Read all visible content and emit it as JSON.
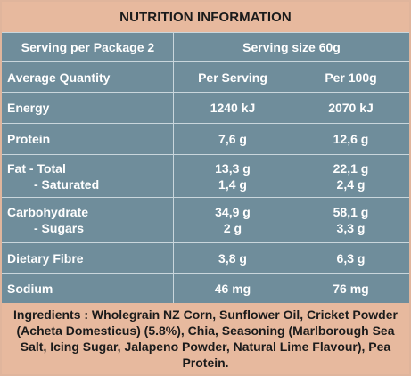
{
  "title": "NUTRITION INFORMATION",
  "serving": {
    "per_package": "Serving per Package 2",
    "size": "Serving size 60g"
  },
  "headers": {
    "quantity": "Average Quantity",
    "per_serving": "Per Serving",
    "per_100g": "Per 100g"
  },
  "rows": {
    "energy": {
      "label": "Energy",
      "per_serving": "1240 kJ",
      "per_100g": "2070 kJ"
    },
    "protein": {
      "label": "Protein",
      "per_serving": "7,6 g",
      "per_100g": "12,6 g"
    },
    "fat": {
      "label": "Fat - Total",
      "per_serving": "13,3 g",
      "per_100g": "22,1 g"
    },
    "saturated": {
      "label": "- Saturated",
      "per_serving": "1,4 g",
      "per_100g": "2,4 g"
    },
    "carbohydrate": {
      "label": "Carbohydrate",
      "per_serving": "34,9 g",
      "per_100g": "58,1 g"
    },
    "sugars": {
      "label": "- Sugars",
      "per_serving": "2 g",
      "per_100g": "3,3 g"
    },
    "fibre": {
      "label": "Dietary Fibre",
      "per_serving": "3,8 g",
      "per_100g": "6,3 g"
    },
    "sodium": {
      "label": "Sodium",
      "per_serving": "46 mg",
      "per_100g": "76 mg"
    }
  },
  "ingredients": "Ingredients : Wholegrain NZ Corn, Sunflower Oil, Cricket Powder (Acheta Domesticus) (5.8%), Chia, Seasoning (Marlborough Sea Salt, Icing Sugar, Jalapeno Powder, Natural Lime Flavour), Pea Protein.",
  "colors": {
    "header_bg": "#e7b99e",
    "table_bg": "#6f8d9b",
    "grid_line": "#c9d6dc",
    "table_text": "#ffffff",
    "header_text": "#1b1b1b"
  }
}
